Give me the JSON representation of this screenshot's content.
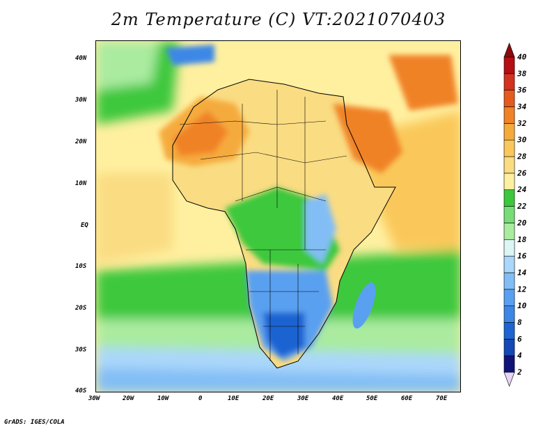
{
  "title": "2m Temperature (C) VT:2021070403",
  "footer": "GrADS: IGES/COLA",
  "map": {
    "lat_labels": [
      "40N",
      "30N",
      "20N",
      "10N",
      "EQ",
      "10S",
      "20S",
      "30S",
      "40S"
    ],
    "lon_labels": [
      "30W",
      "20W",
      "10W",
      "0",
      "10E",
      "20E",
      "30E",
      "40E",
      "50E",
      "60E",
      "70E"
    ]
  },
  "colorbar": {
    "levels": [
      "2",
      "4",
      "6",
      "8",
      "10",
      "12",
      "14",
      "16",
      "18",
      "20",
      "22",
      "24",
      "26",
      "28",
      "30",
      "32",
      "34",
      "36",
      "38",
      "40"
    ],
    "colors": [
      "#e6d6f5",
      "#101478",
      "#1448b4",
      "#1e64d2",
      "#3c87e6",
      "#5aa0f0",
      "#82bef5",
      "#aad7fa",
      "#dcf5f5",
      "#aaeba0",
      "#78dc78",
      "#3cc83c",
      "#fff0a0",
      "#fadc82",
      "#fac85a",
      "#f5aa3c",
      "#f08228",
      "#e65a1e",
      "#d2321e",
      "#b40f14",
      "#8c0a0a"
    ]
  }
}
